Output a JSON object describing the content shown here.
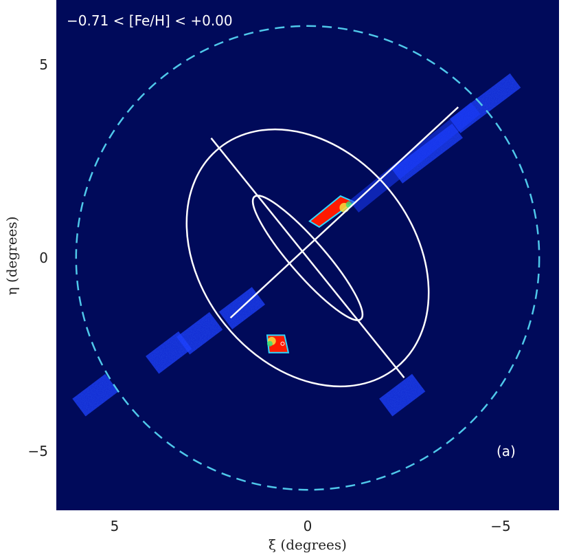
{
  "chart_data": {
    "type": "heatmap",
    "title": "−0.71 < [Fe/H] < +0.00",
    "panel_label": "(a)",
    "xlabel": "ξ (degrees)",
    "ylabel": "η (degrees)",
    "xlim": [
      6.5,
      -6.5
    ],
    "ylim": [
      -6.5,
      6.5
    ],
    "x_ticks": [
      5,
      0,
      -5
    ],
    "x_tick_labels": [
      "5",
      "0",
      "−5"
    ],
    "y_ticks": [
      5,
      0,
      -5
    ],
    "y_tick_labels": [
      "5",
      "0",
      "−5"
    ],
    "grid": false,
    "colors": {
      "background": "#000a5a",
      "boundary_circle": "#4fc8ea",
      "ellipse": "#ffffff",
      "low_density": "#1a3cff",
      "mid_density": "#2fd9ff",
      "high_density": "#ff1a00"
    },
    "boundary_circle": {
      "center": [
        0,
        0
      ],
      "radius_deg": 6.0,
      "style": "dashed"
    },
    "disk_ellipses": [
      {
        "name": "outer",
        "center": [
          0,
          0
        ],
        "semi_major_deg": 3.65,
        "semi_minor_deg": 2.75,
        "major_axis_endpoints": [
          [
            2.5,
            3.1
          ],
          [
            -2.5,
            -3.1
          ]
        ]
      },
      {
        "name": "inner",
        "center": [
          0,
          0
        ],
        "semi_major_deg": 2.1,
        "semi_minor_deg": 0.45,
        "major_axis_endpoints": [
          [
            1.35,
            1.55
          ],
          [
            -1.35,
            -1.55
          ]
        ]
      }
    ],
    "minor_axis_line": [
      [
        2.0,
        -1.55
      ],
      [
        -3.9,
        3.9
      ]
    ],
    "density_regions": [
      {
        "name": "M32 region",
        "corners": [
          [
            -0.3,
            0.8
          ],
          [
            -1.2,
            1.45
          ],
          [
            -0.85,
            1.6
          ],
          [
            -0.05,
            0.95
          ]
        ],
        "level": "high"
      },
      {
        "name": "NGC 205 region",
        "corners": [
          [
            1.05,
            -2.0
          ],
          [
            0.6,
            -2.0
          ],
          [
            0.5,
            -2.45
          ],
          [
            1.0,
            -2.45
          ]
        ],
        "level": "high"
      },
      {
        "name": "SE minor-axis field 1",
        "center": [
          1.7,
          -1.3
        ],
        "level": "low"
      },
      {
        "name": "SE minor-axis field 2",
        "center": [
          2.8,
          -1.95
        ],
        "level": "low"
      },
      {
        "name": "SE minor-axis field 3",
        "center": [
          3.6,
          -2.45
        ],
        "level": "low"
      },
      {
        "name": "SE minor-axis field 4",
        "center": [
          5.5,
          -3.55
        ],
        "level": "low"
      },
      {
        "name": "NW minor-axis strip",
        "center": [
          -3.1,
          2.7
        ],
        "level": "low"
      },
      {
        "name": "NW minor-axis outer strip",
        "center": [
          -4.6,
          4.0
        ],
        "level": "low"
      },
      {
        "name": "SW major-axis field",
        "center": [
          -2.45,
          -3.55
        ],
        "level": "low"
      }
    ]
  }
}
